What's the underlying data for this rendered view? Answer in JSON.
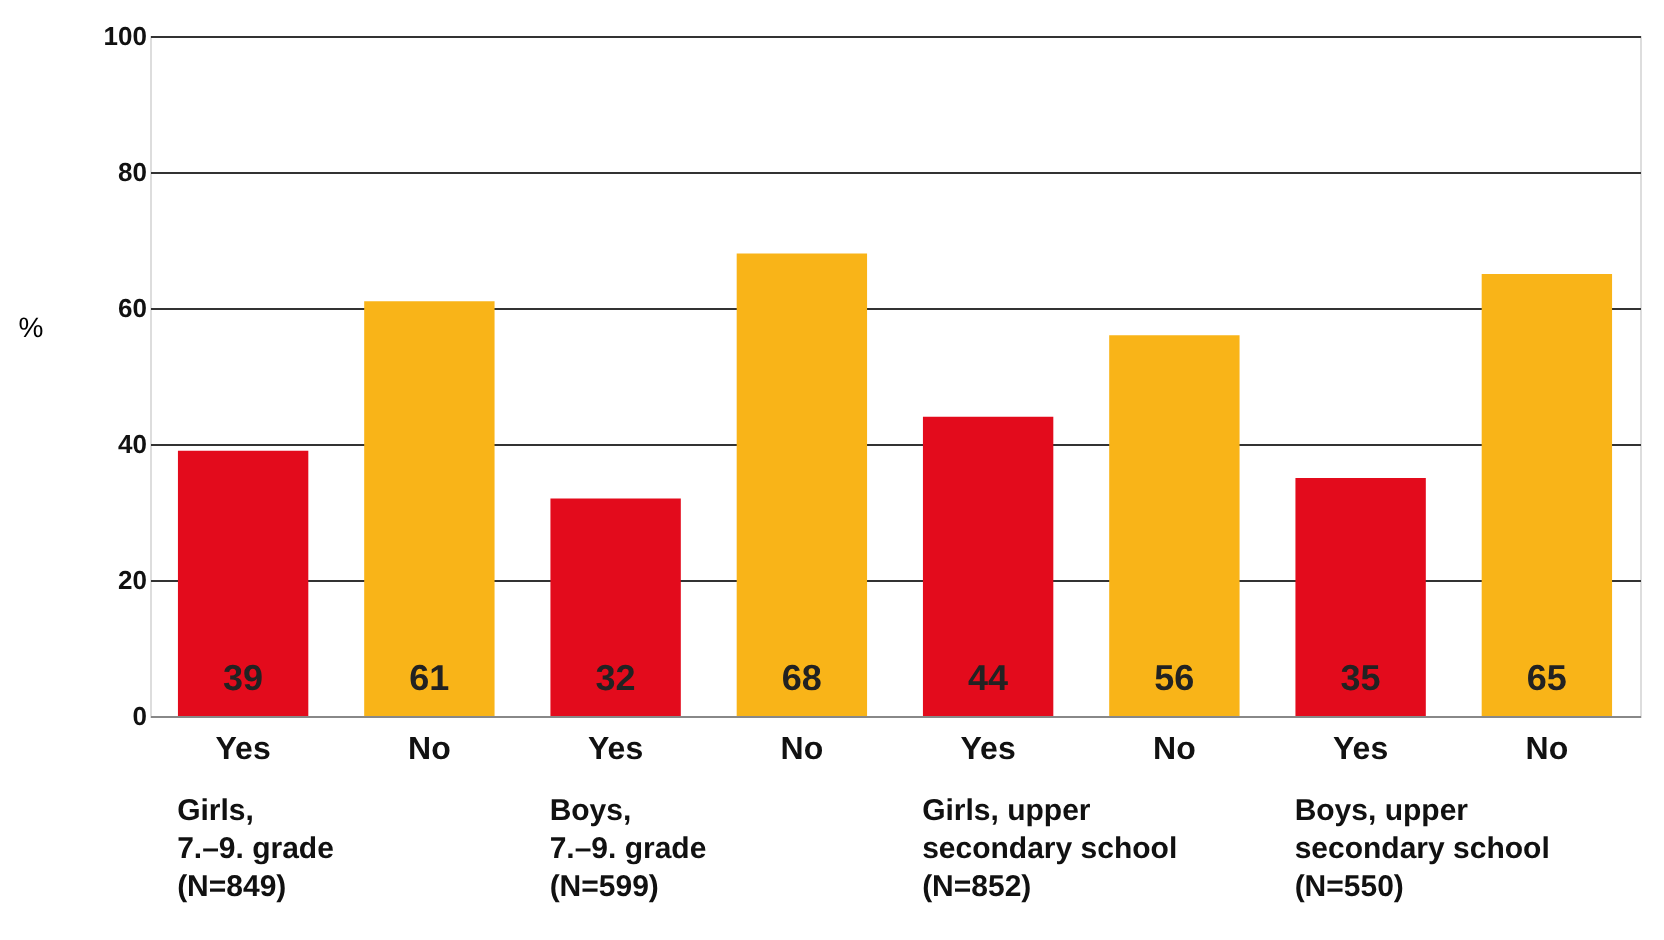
{
  "chart_data": {
    "type": "bar",
    "ylabel": "%",
    "categories": [
      "Yes",
      "No",
      "Yes",
      "No",
      "Yes",
      "No",
      "Yes",
      "No"
    ],
    "values": [
      39,
      61,
      32,
      68,
      44,
      56,
      35,
      65
    ],
    "colors": [
      "#e30b1c",
      "#f9b418",
      "#e30b1c",
      "#f9b418",
      "#e30b1c",
      "#f9b418",
      "#e30b1c",
      "#f9b418"
    ],
    "ylim": [
      0,
      100
    ],
    "yticks": [
      0,
      20,
      40,
      60,
      80,
      100
    ],
    "grid": "y",
    "data_labels": true,
    "annotations": [
      "Girls,\n7.–9. grade\n(N=849)",
      "Boys,\n7.–9. grade\n(N=599)",
      "Girls, upper\nsecondary school\n(N=852)",
      "Boys, upper\nsecondary school\n(N=550)"
    ]
  }
}
